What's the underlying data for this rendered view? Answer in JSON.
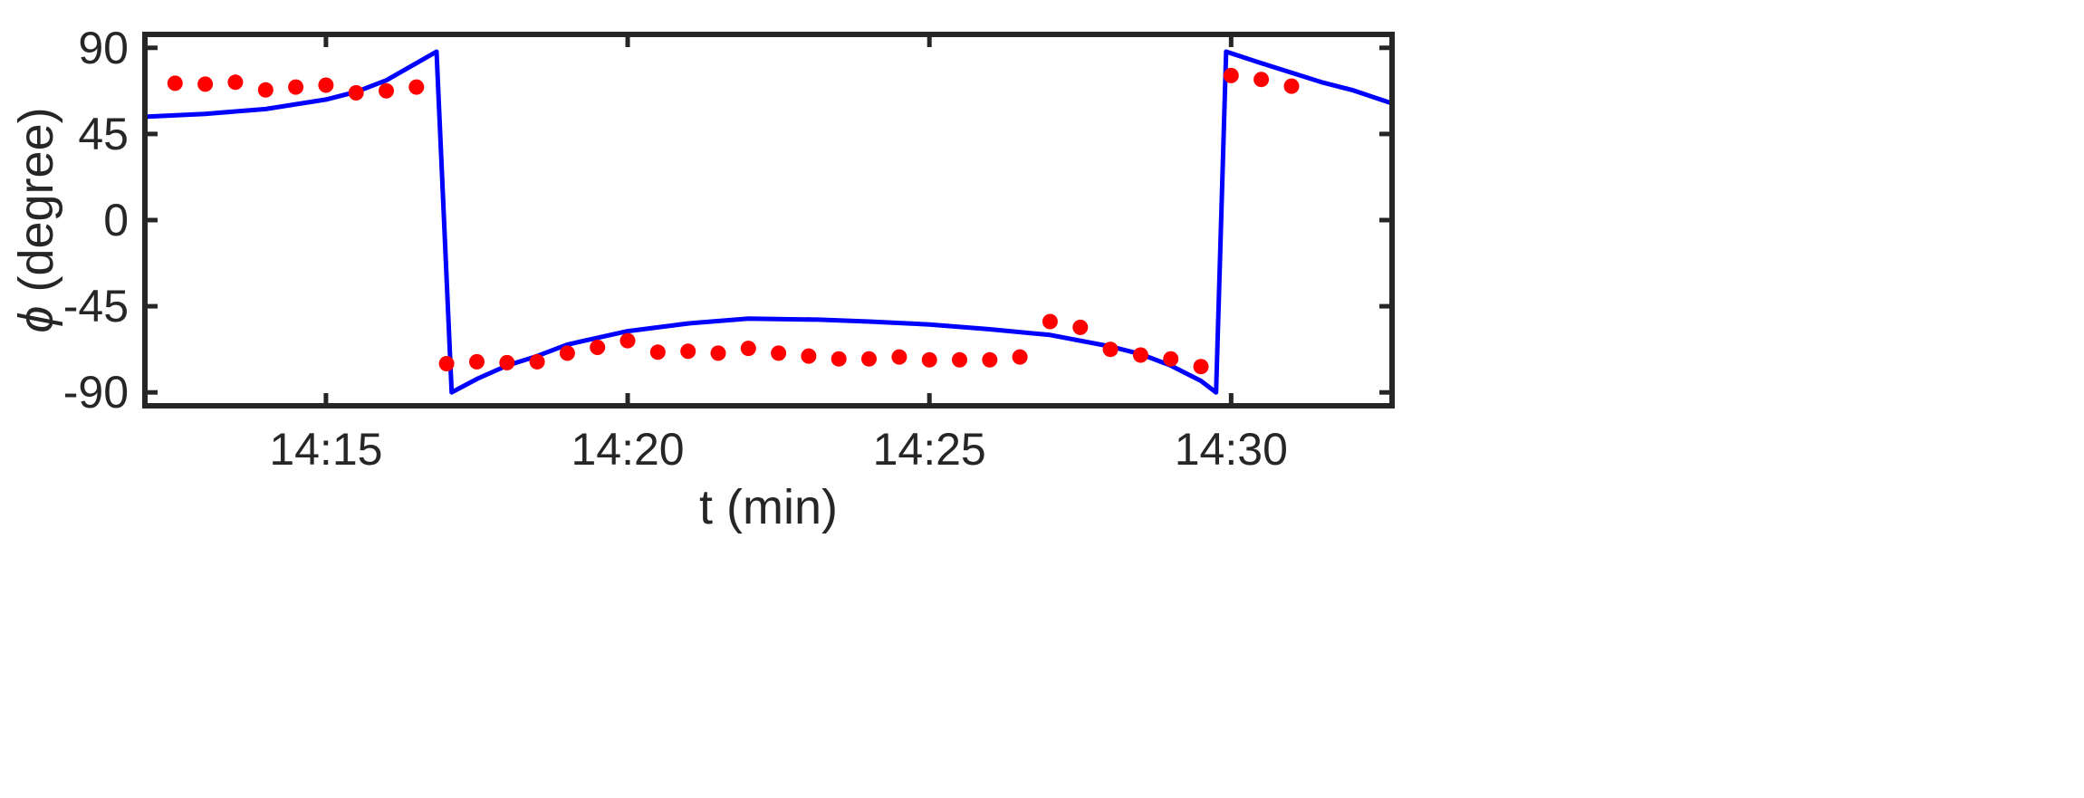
{
  "chart_data": {
    "type": "line",
    "title": "",
    "xlabel": "t (min)",
    "ylabel_symbol": "ϕ",
    "ylabel_rest": " (degree)",
    "xlim": [
      "14:12:00",
      "14:32:40"
    ],
    "ylim": [
      -97,
      97
    ],
    "x_ticks": [
      "14:15",
      "14:20",
      "14:25",
      "14:30"
    ],
    "y_ticks": [
      90,
      45,
      0,
      -45,
      -90
    ],
    "y_tick_labels": [
      "90",
      "45",
      "0",
      "-45",
      "-90"
    ],
    "grid": false,
    "box": true,
    "series": [
      {
        "kind": "line",
        "color": "#0000ff",
        "points": [
          [
            "14:12:00",
            54
          ],
          [
            "14:13:00",
            55.5
          ],
          [
            "14:14:00",
            58
          ],
          [
            "14:15:00",
            63
          ],
          [
            "14:15:30",
            67
          ],
          [
            "14:16:00",
            73
          ],
          [
            "14:16:30",
            82
          ],
          [
            "14:16:50",
            88
          ],
          [
            "14:17:05",
            -90
          ],
          [
            "14:17:30",
            -83
          ],
          [
            "14:18:00",
            -76
          ],
          [
            "14:18:30",
            -71
          ],
          [
            "14:19:00",
            -65
          ],
          [
            "14:20:00",
            -58
          ],
          [
            "14:21:00",
            -54
          ],
          [
            "14:22:00",
            -51.5
          ],
          [
            "14:23:10",
            -52
          ],
          [
            "14:24:00",
            -53
          ],
          [
            "14:25:00",
            -54.5
          ],
          [
            "14:26:00",
            -57
          ],
          [
            "14:27:00",
            -60
          ],
          [
            "14:28:00",
            -66
          ],
          [
            "14:28:30",
            -70
          ],
          [
            "14:29:00",
            -76
          ],
          [
            "14:29:30",
            -84
          ],
          [
            "14:29:45",
            -90
          ],
          [
            "14:29:55",
            88
          ],
          [
            "14:30:30",
            82
          ],
          [
            "14:31:00",
            77
          ],
          [
            "14:31:30",
            72
          ],
          [
            "14:32:00",
            68
          ],
          [
            "14:32:40",
            61
          ]
        ]
      },
      {
        "kind": "markers",
        "color": "#ff0000",
        "points": [
          [
            "14:12:30",
            71.5
          ],
          [
            "14:13:00",
            71
          ],
          [
            "14:13:30",
            72
          ],
          [
            "14:14:00",
            68
          ],
          [
            "14:14:30",
            69.5
          ],
          [
            "14:15:00",
            70.5
          ],
          [
            "14:15:30",
            66.5
          ],
          [
            "14:16:00",
            67.5
          ],
          [
            "14:16:30",
            69.5
          ],
          [
            "14:17:00",
            -75
          ],
          [
            "14:17:30",
            -74
          ],
          [
            "14:18:00",
            -74.5
          ],
          [
            "14:18:30",
            -74
          ],
          [
            "14:19:00",
            -69.5
          ],
          [
            "14:19:30",
            -66.5
          ],
          [
            "14:20:00",
            -63
          ],
          [
            "14:20:30",
            -69
          ],
          [
            "14:21:00",
            -68.5
          ],
          [
            "14:21:30",
            -69.5
          ],
          [
            "14:22:00",
            -67
          ],
          [
            "14:22:30",
            -69.5
          ],
          [
            "14:23:00",
            -71
          ],
          [
            "14:23:30",
            -72.5
          ],
          [
            "14:24:00",
            -72.5
          ],
          [
            "14:24:30",
            -71.5
          ],
          [
            "14:25:00",
            -73
          ],
          [
            "14:25:30",
            -73
          ],
          [
            "14:26:00",
            -73
          ],
          [
            "14:26:30",
            -71.5
          ],
          [
            "14:27:00",
            -53
          ],
          [
            "14:27:30",
            -56
          ],
          [
            "14:28:00",
            -67.5
          ],
          [
            "14:28:30",
            -70.5
          ],
          [
            "14:29:00",
            -72.5
          ],
          [
            "14:29:30",
            -76.5
          ],
          [
            "14:30:00",
            75.5
          ],
          [
            "14:30:30",
            73.5
          ],
          [
            "14:31:00",
            70
          ]
        ]
      }
    ]
  }
}
